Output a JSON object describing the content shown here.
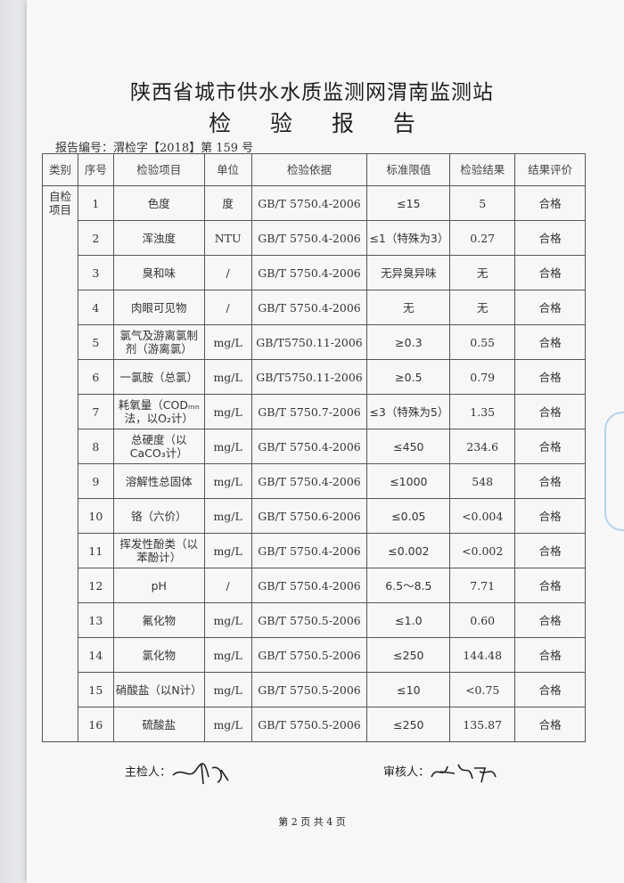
{
  "title": "陕西省城市供水水质监测网渭南监测站",
  "subtitle": "检 验 报 告",
  "report_number": "报告编号：渭检字【2018】第 159 号",
  "table": {
    "headers": [
      "类别",
      "序号",
      "检验项目",
      "单位",
      "检验依据",
      "标准限值",
      "检验结果",
      "结果评价"
    ],
    "category": "自检项目",
    "rows": [
      [
        "1",
        "色度",
        "度",
        "GB/T 5750.4-2006",
        "≤15",
        "5",
        "合格"
      ],
      [
        "2",
        "浑浊度",
        "NTU",
        "GB/T 5750.4-2006",
        "≤1（特殊为3）",
        "0.27",
        "合格"
      ],
      [
        "3",
        "臭和味",
        "/",
        "GB/T 5750.4-2006",
        "无异臭异味",
        "无",
        "合格"
      ],
      [
        "4",
        "肉眼可见物",
        "/",
        "GB/T 5750.4-2006",
        "无",
        "无",
        "合格"
      ],
      [
        "5",
        "氯气及游离氯制剂（游离氯）",
        "mg/L",
        "GB/T5750.11-2006",
        "≥0.3",
        "0.55",
        "合格"
      ],
      [
        "6",
        "一氯胺（总氯）",
        "mg/L",
        "GB/T5750.11-2006",
        "≥0.5",
        "0.79",
        "合格"
      ],
      [
        "7",
        "耗氧量（CODₘₙ法，以O₂计）",
        "mg/L",
        "GB/T 5750.7-2006",
        "≤3（特殊为5）",
        "1.35",
        "合格"
      ],
      [
        "8",
        "总硬度（以CaCO₃计）",
        "mg/L",
        "GB/T 5750.4-2006",
        "≤450",
        "234.6",
        "合格"
      ],
      [
        "9",
        "溶解性总固体",
        "mg/L",
        "GB/T 5750.4-2006",
        "≤1000",
        "548",
        "合格"
      ],
      [
        "10",
        "铬（六价）",
        "mg/L",
        "GB/T 5750.6-2006",
        "≤0.05",
        "<0.004",
        "合格"
      ],
      [
        "11",
        "挥发性酚类（以苯酚计）",
        "mg/L",
        "GB/T 5750.4-2006",
        "≤0.002",
        "<0.002",
        "合格"
      ],
      [
        "12",
        "pH",
        "/",
        "GB/T 5750.4-2006",
        "6.5～8.5",
        "7.71",
        "合格"
      ],
      [
        "13",
        "氟化物",
        "mg/L",
        "GB/T 5750.5-2006",
        "≤1.0",
        "0.60",
        "合格"
      ],
      [
        "14",
        "氯化物",
        "mg/L",
        "GB/T 5750.5-2006",
        "≤250",
        "144.48",
        "合格"
      ],
      [
        "15",
        "硝酸盐（以N计）",
        "mg/L",
        "GB/T 5750.5-2006",
        "≤10",
        "<0.75",
        "合格"
      ],
      [
        "16",
        "硫酸盐",
        "mg/L",
        "GB/T 5750.5-2006",
        "≤250",
        "135.87",
        "合格"
      ]
    ]
  },
  "signatures": {
    "inspector_label": "主检人：",
    "reviewer_label": "审核人："
  },
  "footer": "第 2 页 共 4 页"
}
